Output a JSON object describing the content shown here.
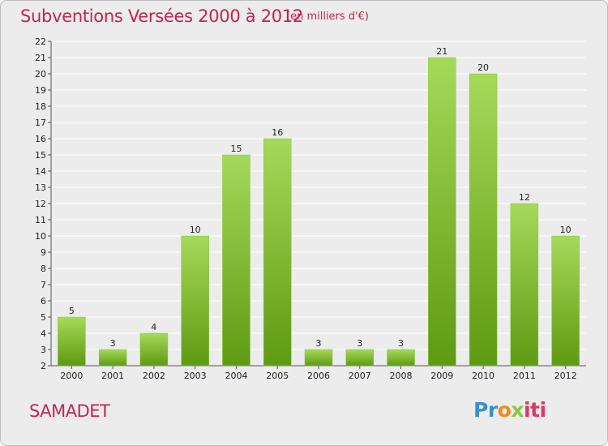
{
  "title": "Subventions Versées 2000 à 2012",
  "subtitle": "(en milliers d'€)",
  "commune": "SAMADET",
  "logo": {
    "p1": "Pr",
    "p2": "o",
    "p3": "x",
    "p4": "iti"
  },
  "colors": {
    "title": "#c0254e",
    "bar_top": "#a6d95a",
    "bar_bottom": "#5e9a12",
    "grid": "#ffffff"
  },
  "chart_data": {
    "type": "bar",
    "categories": [
      "2000",
      "2001",
      "2002",
      "2003",
      "2004",
      "2005",
      "2006",
      "2007",
      "2008",
      "2009",
      "2010",
      "2011",
      "2012"
    ],
    "values": [
      5,
      3,
      4,
      10,
      15,
      16,
      3,
      3,
      3,
      21,
      20,
      12,
      10
    ],
    "ylim": [
      2,
      22
    ],
    "yticks": [
      2,
      3,
      4,
      5,
      6,
      7,
      8,
      9,
      10,
      11,
      12,
      13,
      14,
      15,
      16,
      17,
      18,
      19,
      20,
      21,
      22
    ],
    "grid": true,
    "data_labels": true
  }
}
